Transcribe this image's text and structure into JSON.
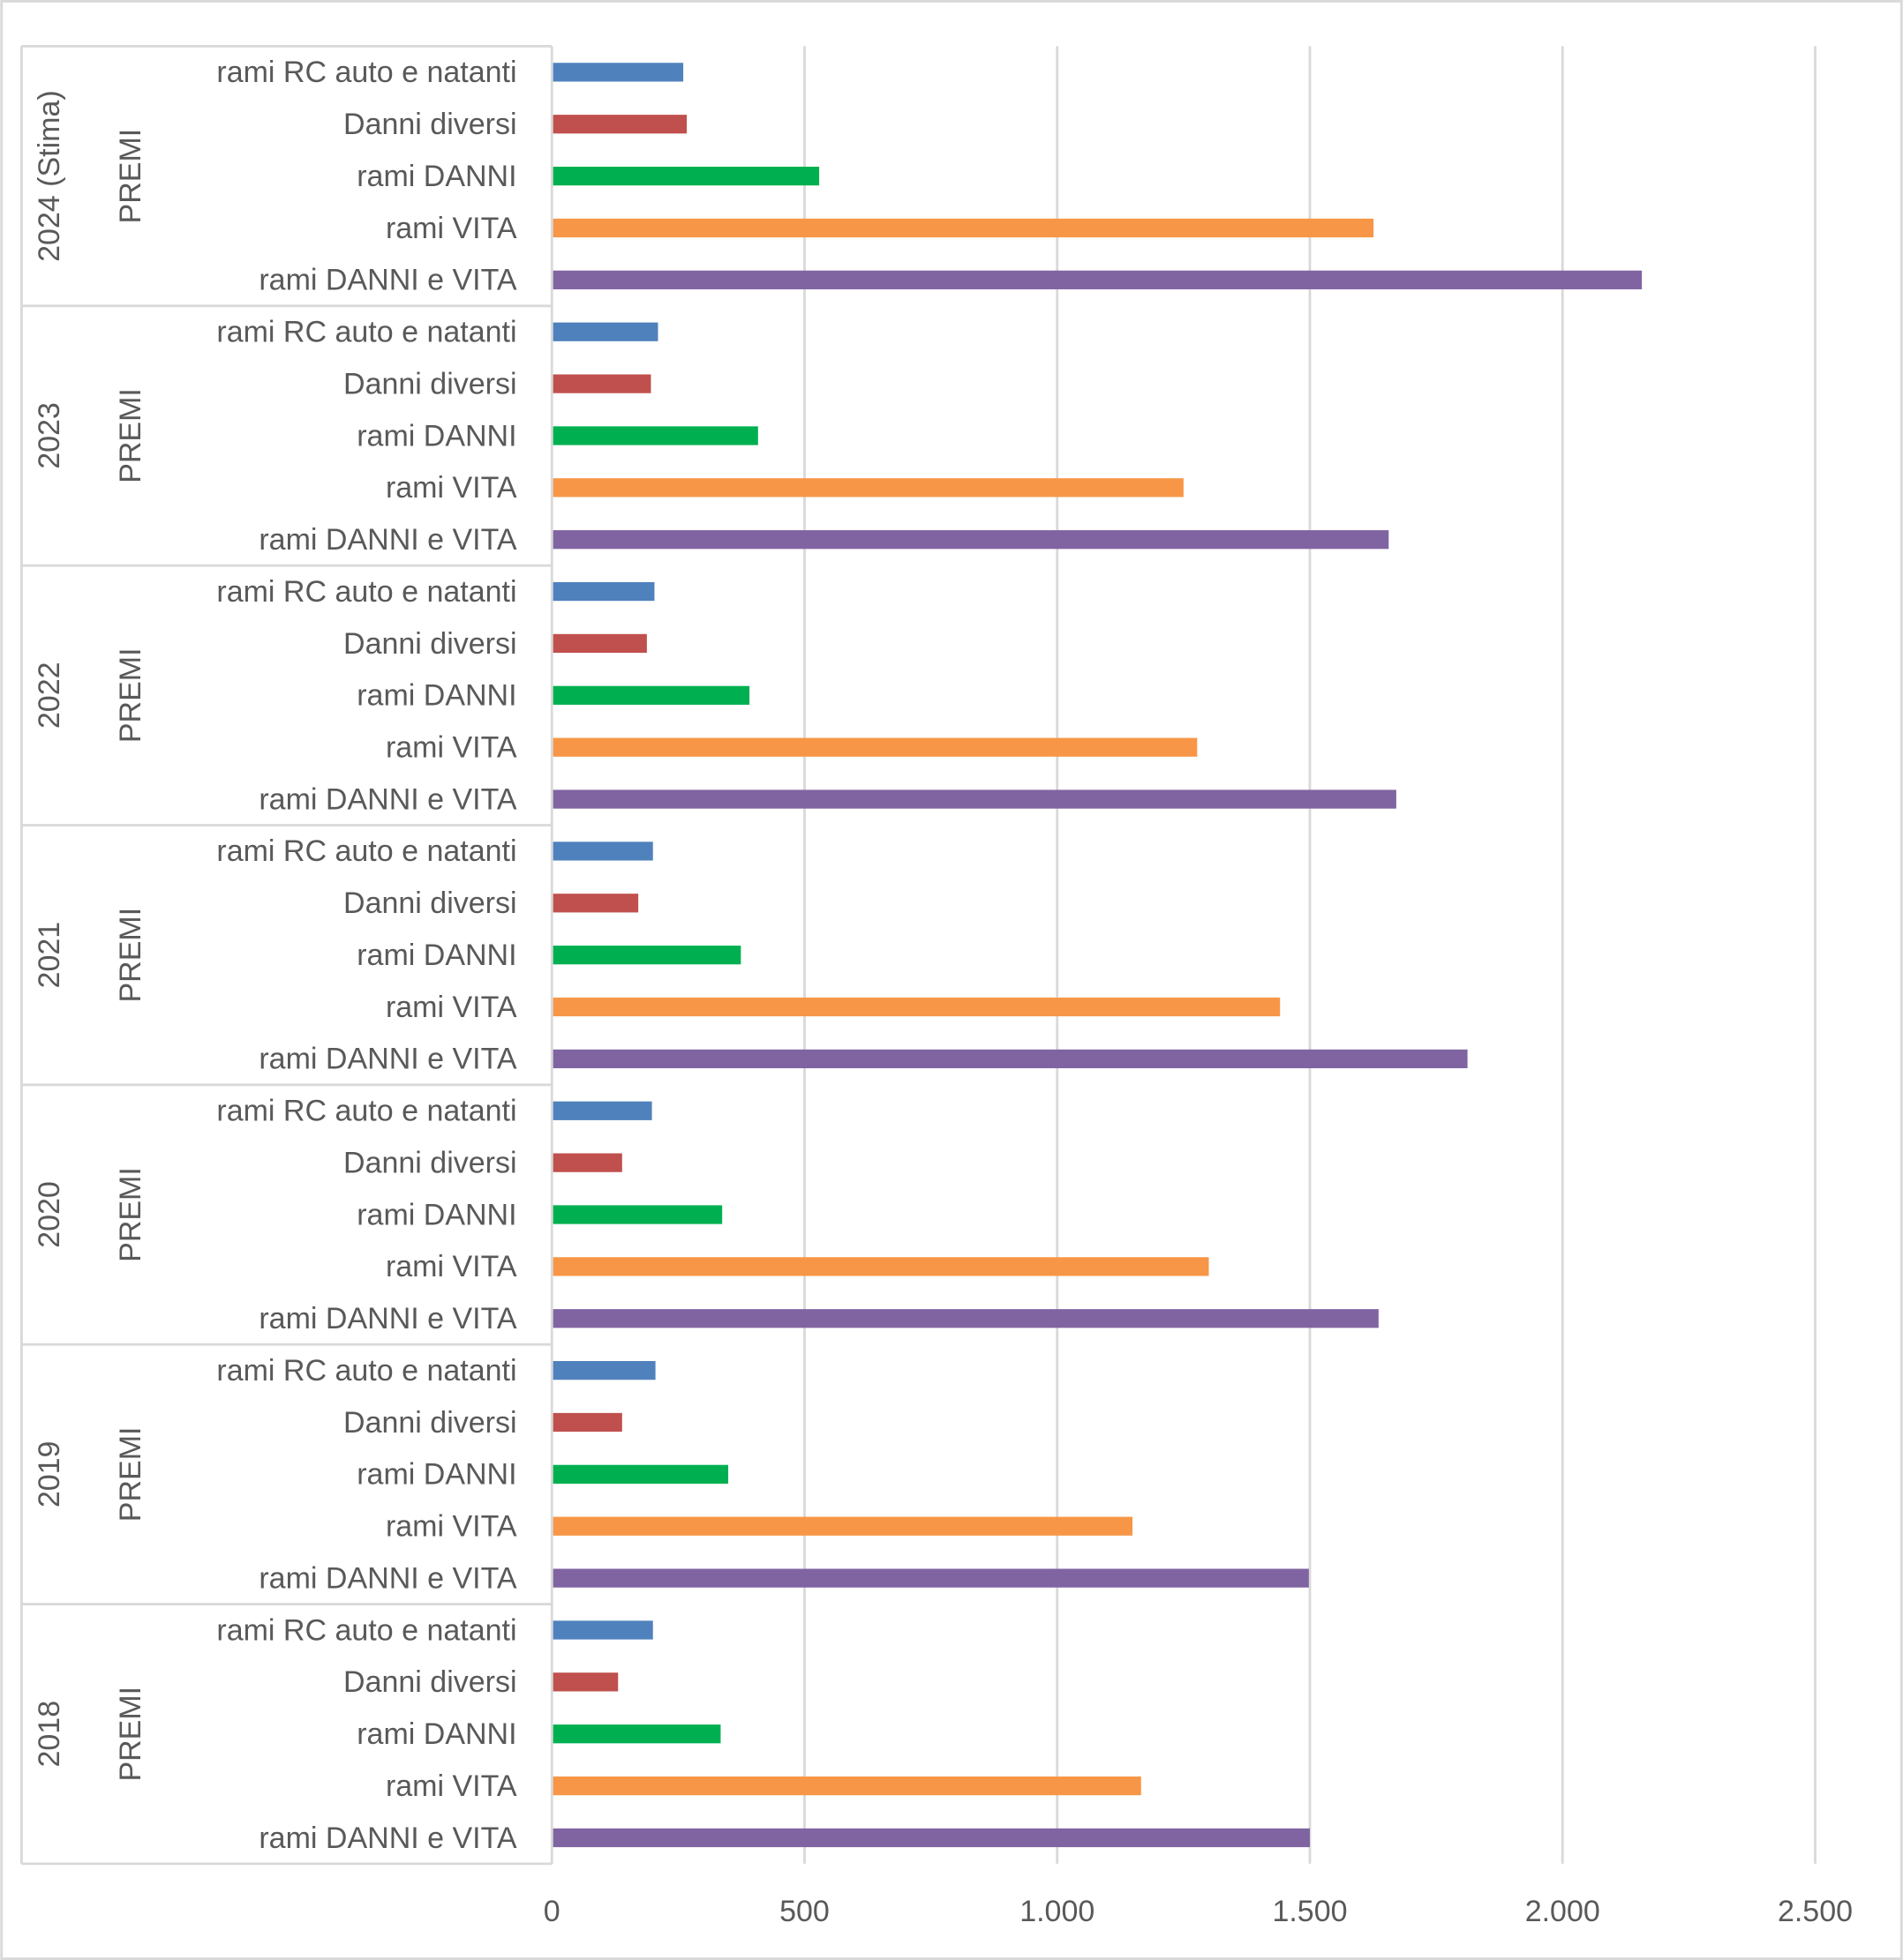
{
  "chart_data": {
    "type": "bar",
    "orientation": "horizontal",
    "title": "",
    "xlabel": "",
    "ylabel": "",
    "xlim": [
      0,
      2500
    ],
    "x_ticks": [
      "0",
      "500",
      "1.000",
      "1.500",
      "2.000",
      "2.500"
    ],
    "x_tick_values": [
      0,
      500,
      1000,
      1500,
      2000,
      2500
    ],
    "grid": true,
    "legend": "none",
    "sub_group_label": "PREMI",
    "categories": [
      "rami RC auto e natanti",
      "Danni diversi",
      "rami DANNI",
      "rami VITA",
      "rami DANNI e VITA"
    ],
    "colors": [
      "#4F81BD",
      "#C0504D",
      "#00B050",
      "#F79646",
      "#8064A2"
    ],
    "groups": [
      {
        "label": "2024 (Stima)",
        "values": [
          260,
          267,
          529,
          1626,
          2157
        ]
      },
      {
        "label": "2023",
        "values": [
          210,
          196,
          408,
          1250,
          1656
        ]
      },
      {
        "label": "2022",
        "values": [
          203,
          188,
          391,
          1277,
          1671
        ]
      },
      {
        "label": "2021",
        "values": [
          200,
          171,
          374,
          1441,
          1812
        ]
      },
      {
        "label": "2020",
        "values": [
          198,
          139,
          337,
          1300,
          1636
        ]
      },
      {
        "label": "2019",
        "values": [
          205,
          139,
          349,
          1149,
          1498
        ]
      },
      {
        "label": "2018",
        "values": [
          200,
          131,
          334,
          1166,
          1500
        ]
      }
    ]
  }
}
